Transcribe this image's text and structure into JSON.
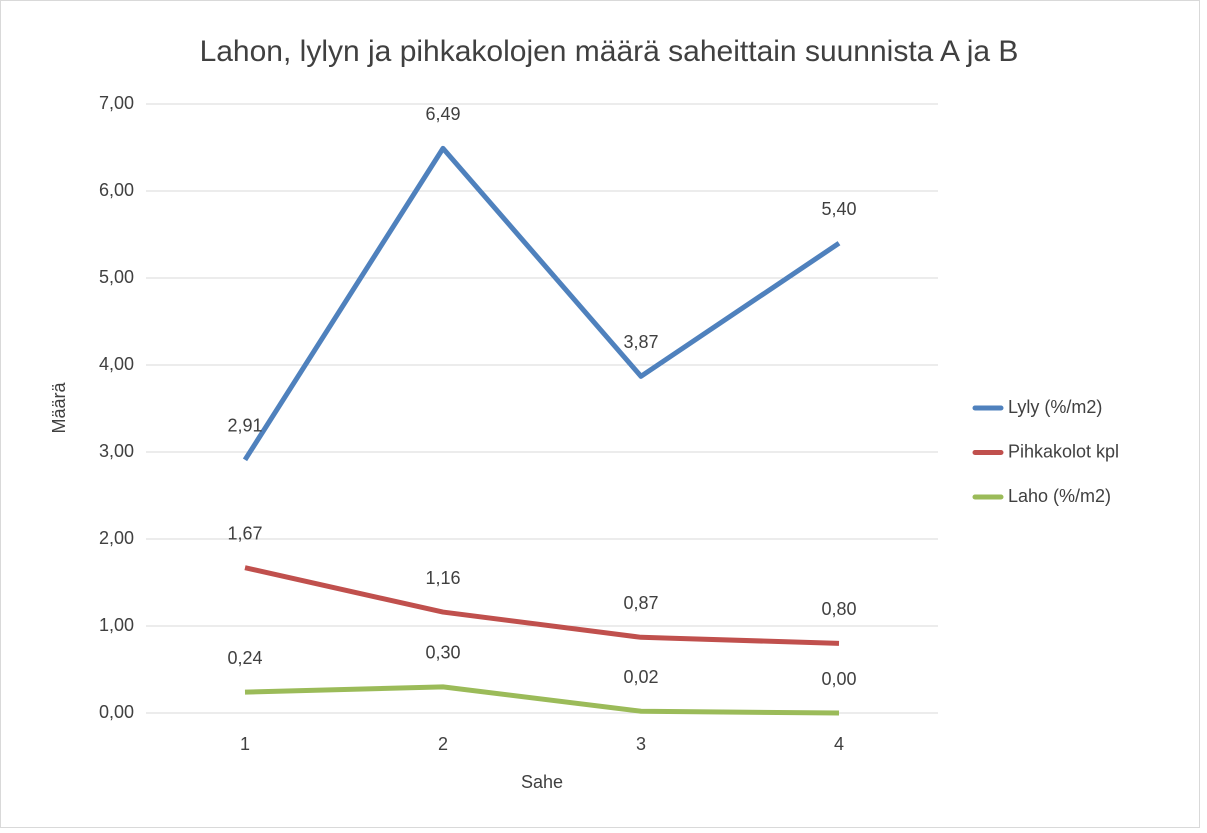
{
  "chart_data": {
    "type": "line",
    "title": "Lahon, lylyn ja pihkakolojen määrä saheittain suunnista A ja B",
    "x_label": "Sahe",
    "y_label": "Määrä",
    "categories": [
      "1",
      "2",
      "3",
      "4"
    ],
    "series": [
      {
        "name": "Lyly (%/m2)",
        "color": "#4f81bd",
        "values": [
          2.91,
          6.49,
          3.87,
          5.4
        ],
        "value_labels": [
          "2,91",
          "6,49",
          "3,87",
          "5,40"
        ]
      },
      {
        "name": "Pihkakolot kpl",
        "color": "#c0504d",
        "values": [
          1.67,
          1.16,
          0.87,
          0.8
        ],
        "value_labels": [
          "1,67",
          "1,16",
          "0,87",
          "0,80"
        ]
      },
      {
        "name": "Laho (%/m2)",
        "color": "#9bbb59",
        "values": [
          0.24,
          0.3,
          0.02,
          0.0
        ],
        "value_labels": [
          "0,24",
          "0,30",
          "0,02",
          "0,00"
        ]
      }
    ],
    "ylim": [
      0,
      7
    ],
    "yticks": [
      {
        "value": 0,
        "label": "0,00"
      },
      {
        "value": 1,
        "label": "1,00"
      },
      {
        "value": 2,
        "label": "2,00"
      },
      {
        "value": 3,
        "label": "3,00"
      },
      {
        "value": 4,
        "label": "4,00"
      },
      {
        "value": 5,
        "label": "5,00"
      },
      {
        "value": 6,
        "label": "6,00"
      },
      {
        "value": 7,
        "label": "7,00"
      }
    ],
    "grid": true,
    "legend": "right"
  }
}
